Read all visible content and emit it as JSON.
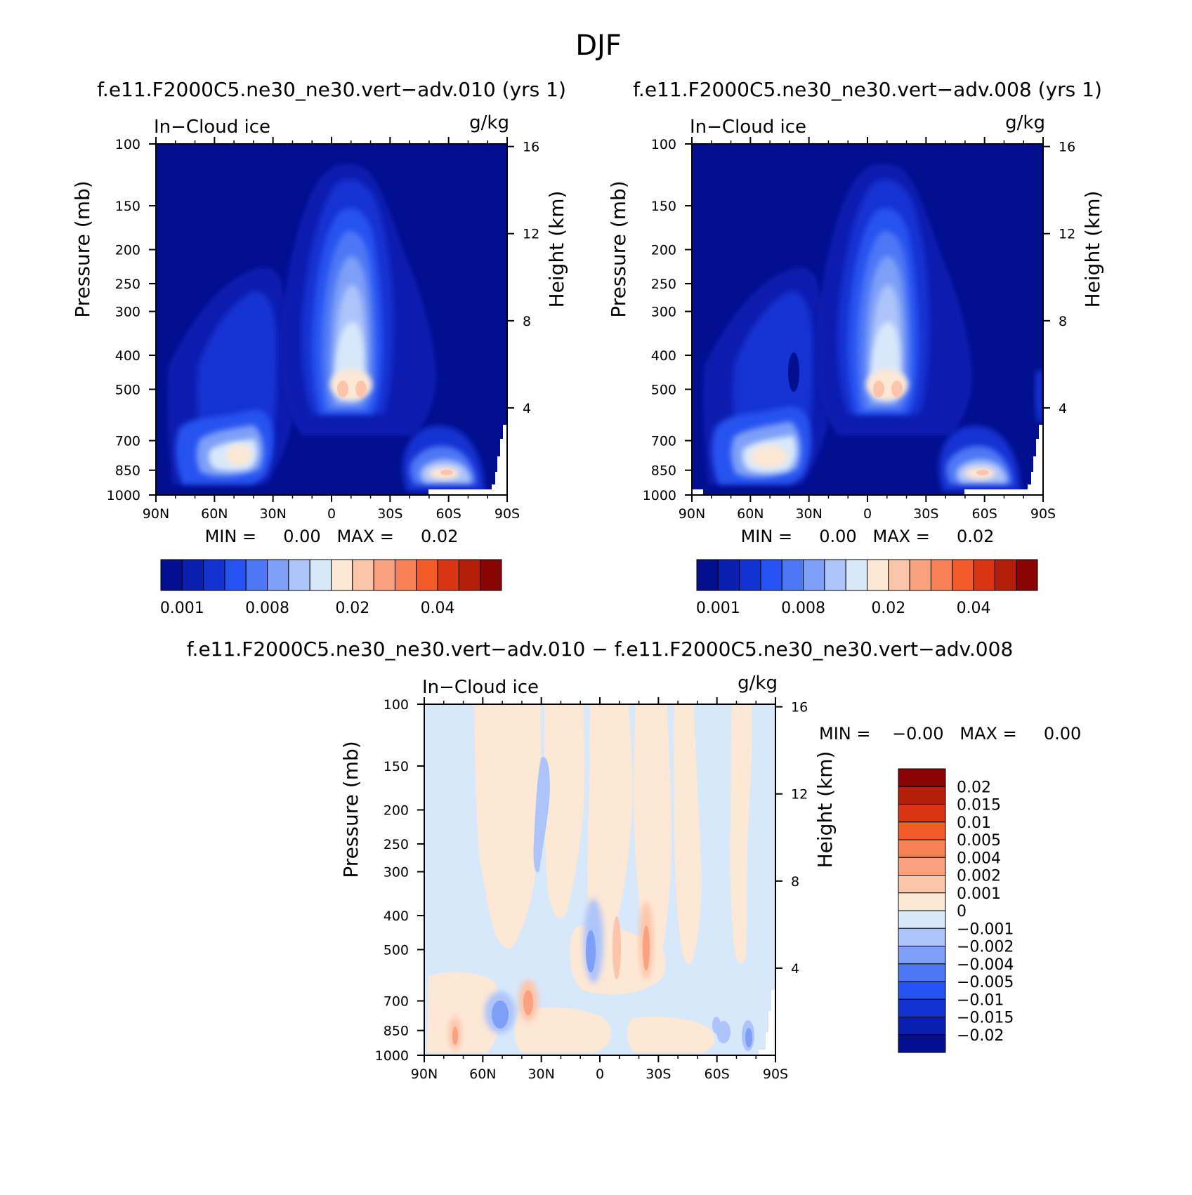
{
  "figure": {
    "title": "DJF"
  },
  "chart_data": [
    {
      "id": "panel-case",
      "type": "heatmap",
      "title": "f.e11.F2000C5.ne30_ne30.vert−adv.010 (yrs 1)",
      "left_label": "In−Cloud ice",
      "right_label": "g/kg",
      "xlabel": "",
      "ylabel": "Pressure (mb)",
      "y2label": "Height (km)",
      "x_ticks": [
        "90N",
        "60N",
        "30N",
        "0",
        "30S",
        "60S",
        "90S"
      ],
      "y_ticks": [
        "100",
        "150",
        "200",
        "250",
        "300",
        "400",
        "500",
        "700",
        "850",
        "1000"
      ],
      "y2_ticks": [
        "16",
        "12",
        "8",
        "4"
      ],
      "stats": "MIN =     0.00   MAX =     0.02",
      "colorbar": {
        "colors": [
          "#020f8f",
          "#0a1fb0",
          "#1233d2",
          "#2552f0",
          "#4d77f5",
          "#7d9ff7",
          "#adc4fa",
          "#d8e8fb",
          "#fde7d5",
          "#fcc5ab",
          "#f9a27d",
          "#f78154",
          "#f35c2a",
          "#d93512",
          "#b51f09",
          "#8a0404"
        ],
        "labels": [
          "0.001",
          "0.008",
          "0.02",
          "0.04"
        ],
        "label_slots": [
          0,
          4,
          8,
          12
        ]
      },
      "features": [
        {
          "lat": 60,
          "pmin": 200,
          "pmax": 1000,
          "value": 0.0015
        },
        {
          "lat": 5,
          "pmin": 110,
          "pmax": 900,
          "value": 0.02
        },
        {
          "lat": -60,
          "pmin": 600,
          "pmax": 1000,
          "value": 0.015
        }
      ]
    },
    {
      "id": "panel-control",
      "type": "heatmap",
      "title": "f.e11.F2000C5.ne30_ne30.vert−adv.008 (yrs 1)",
      "left_label": "In−Cloud ice",
      "right_label": "g/kg",
      "xlabel": "",
      "ylabel": "Pressure (mb)",
      "y2label": "Height (km)",
      "x_ticks": [
        "90N",
        "60N",
        "30N",
        "0",
        "30S",
        "60S",
        "90S"
      ],
      "y_ticks": [
        "100",
        "150",
        "200",
        "250",
        "300",
        "400",
        "500",
        "700",
        "850",
        "1000"
      ],
      "y2_ticks": [
        "16",
        "12",
        "8",
        "4"
      ],
      "stats": "MIN =     0.00   MAX =     0.02",
      "colorbar": {
        "colors": [
          "#020f8f",
          "#0a1fb0",
          "#1233d2",
          "#2552f0",
          "#4d77f5",
          "#7d9ff7",
          "#adc4fa",
          "#d8e8fb",
          "#fde7d5",
          "#fcc5ab",
          "#f9a27d",
          "#f78154",
          "#f35c2a",
          "#d93512",
          "#b51f09",
          "#8a0404"
        ],
        "labels": [
          "0.001",
          "0.008",
          "0.02",
          "0.04"
        ],
        "label_slots": [
          0,
          4,
          8,
          12
        ]
      },
      "features": [
        {
          "lat": 60,
          "pmin": 200,
          "pmax": 1000,
          "value": 0.0015
        },
        {
          "lat": 5,
          "pmin": 110,
          "pmax": 900,
          "value": 0.02
        },
        {
          "lat": -60,
          "pmin": 600,
          "pmax": 1000,
          "value": 0.015
        }
      ]
    },
    {
      "id": "panel-diff",
      "type": "heatmap",
      "title": "f.e11.F2000C5.ne30_ne30.vert−adv.010 − f.e11.F2000C5.ne30_ne30.vert−adv.008",
      "left_label": "In−Cloud ice",
      "right_label": "g/kg",
      "xlabel": "",
      "ylabel": "Pressure (mb)",
      "y2label": "Height (km)",
      "x_ticks": [
        "90N",
        "60N",
        "30N",
        "0",
        "30S",
        "60S",
        "90S"
      ],
      "y_ticks": [
        "100",
        "150",
        "200",
        "250",
        "300",
        "400",
        "500",
        "700",
        "850",
        "1000"
      ],
      "y2_ticks": [
        "16",
        "12",
        "8",
        "4"
      ],
      "stats": "MIN =    −0.00   MAX =     0.00",
      "colorbar": {
        "colors": [
          "#8a0404",
          "#b51f09",
          "#d93512",
          "#f35c2a",
          "#f78154",
          "#f9a27d",
          "#fcc5ab",
          "#fde7d5",
          "#d8e8fb",
          "#adc4fa",
          "#7d9ff7",
          "#4d77f5",
          "#2552f0",
          "#1233d2",
          "#0a1fb0",
          "#020f8f"
        ],
        "labels": [
          "0.02",
          "0.015",
          "0.01",
          "0.005",
          "0.004",
          "0.002",
          "0.001",
          "0",
          "−0.001",
          "−0.002",
          "−0.004",
          "−0.005",
          "−0.01",
          "−0.015",
          "−0.02"
        ]
      },
      "features": [
        {
          "lat": -30,
          "pmin": 350,
          "pmax": 700,
          "value": 0.005
        },
        {
          "lat": 5,
          "pmin": 400,
          "pmax": 600,
          "value": -0.004
        },
        {
          "lat": 45,
          "pmin": 650,
          "pmax": 800,
          "value": -0.004
        },
        {
          "lat": 35,
          "pmin": 650,
          "pmax": 800,
          "value": 0.004
        }
      ]
    }
  ]
}
